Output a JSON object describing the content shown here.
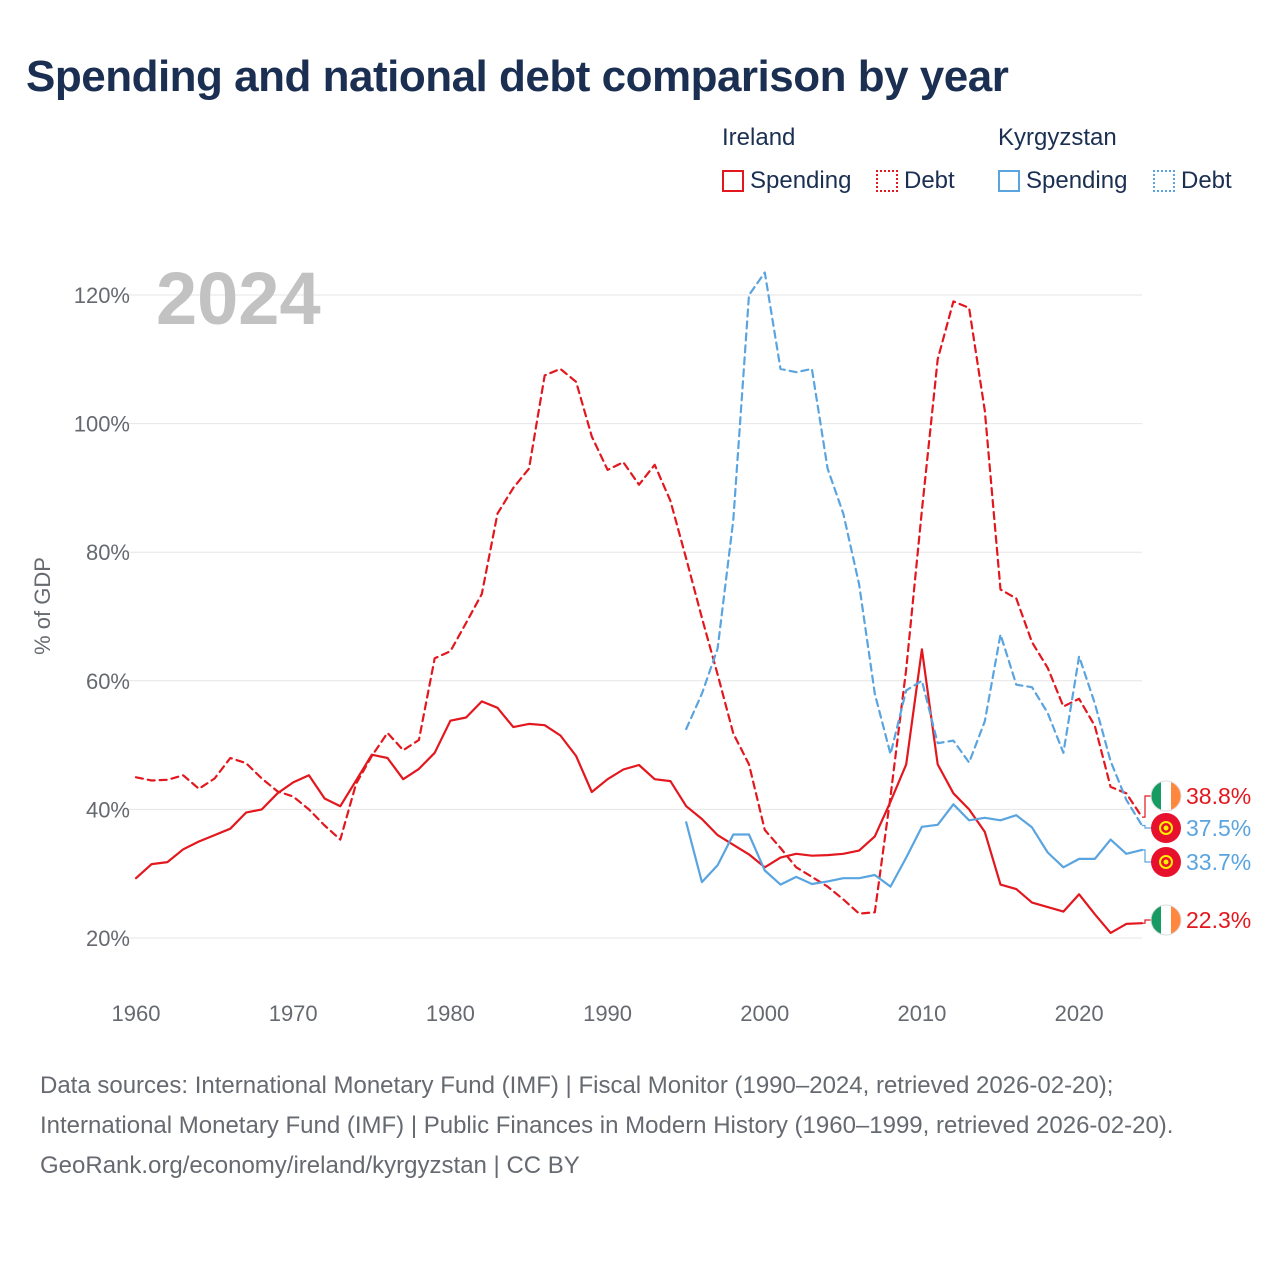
{
  "title": "Spending and national debt comparison by year",
  "legend": {
    "groups": [
      {
        "name": "Ireland",
        "items": [
          {
            "label": "Spending",
            "style": "solid",
            "color": "#e3171e"
          },
          {
            "label": "Debt",
            "style": "dotted",
            "color": "#e3171e"
          }
        ]
      },
      {
        "name": "Kyrgyzstan",
        "items": [
          {
            "label": "Spending",
            "style": "solid",
            "color": "#5aa4e0"
          },
          {
            "label": "Debt",
            "style": "dotted",
            "color": "#5aa4e0"
          }
        ]
      }
    ]
  },
  "chart_data": {
    "type": "line",
    "year_label": "2024",
    "ylabel": "% of GDP",
    "xlim": [
      1960,
      2024
    ],
    "ylim": [
      14,
      124
    ],
    "yticks": [
      20,
      40,
      60,
      80,
      100,
      120
    ],
    "ytick_labels": [
      "20%",
      "40%",
      "60%",
      "80%",
      "100%",
      "120%"
    ],
    "xticks": [
      1960,
      1970,
      1980,
      1990,
      2000,
      2010,
      2020
    ],
    "xtick_labels": [
      "1960",
      "1970",
      "1980",
      "1990",
      "2000",
      "2010",
      "2020"
    ],
    "colors": {
      "ireland": "#e3171e",
      "kyrgyzstan": "#5aa4e0"
    },
    "series": [
      {
        "name": "Ireland Debt",
        "country": "ireland",
        "style": "dashed",
        "color": "#e3171e",
        "x": [
          1960,
          1961,
          1962,
          1963,
          1964,
          1965,
          1966,
          1967,
          1968,
          1969,
          1970,
          1971,
          1972,
          1973,
          1974,
          1975,
          1976,
          1977,
          1978,
          1979,
          1980,
          1981,
          1982,
          1983,
          1984,
          1985,
          1986,
          1987,
          1988,
          1989,
          1990,
          1991,
          1992,
          1993,
          1994,
          1995,
          1996,
          1997,
          1998,
          1999,
          2000,
          2001,
          2002,
          2003,
          2004,
          2005,
          2006,
          2007,
          2008,
          2009,
          2010,
          2011,
          2012,
          2013,
          2014,
          2015,
          2016,
          2017,
          2018,
          2019,
          2020,
          2021,
          2022,
          2023,
          2024
        ],
        "values": [
          45,
          44.5,
          44.6,
          45.3,
          43.2,
          44.8,
          48,
          47.2,
          44.8,
          42.8,
          42,
          40,
          37.5,
          35.3,
          44,
          48.3,
          51.9,
          49.2,
          50.8,
          63.5,
          64.6,
          69,
          73.5,
          86,
          90,
          93,
          107.5,
          108.5,
          106.5,
          98,
          92.8,
          94,
          90.5,
          93.6,
          88,
          79,
          69.8,
          61,
          51.8,
          47,
          36.8,
          34,
          31,
          29.5,
          28,
          26,
          23.8,
          24,
          42,
          61.8,
          86.5,
          110,
          119,
          118,
          102,
          74.2,
          72.8,
          66,
          62,
          56,
          57.2,
          53,
          43.5,
          42.5,
          38.8
        ],
        "end_label": "38.8%"
      },
      {
        "name": "Ireland Spending",
        "country": "ireland",
        "style": "solid",
        "color": "#e3171e",
        "x": [
          1960,
          1961,
          1962,
          1963,
          1964,
          1965,
          1966,
          1967,
          1968,
          1969,
          1970,
          1971,
          1972,
          1973,
          1974,
          1975,
          1976,
          1977,
          1978,
          1979,
          1980,
          1981,
          1982,
          1983,
          1984,
          1985,
          1986,
          1987,
          1988,
          1989,
          1990,
          1991,
          1992,
          1993,
          1994,
          1995,
          1996,
          1997,
          1998,
          1999,
          2000,
          2001,
          2002,
          2003,
          2004,
          2005,
          2006,
          2007,
          2008,
          2009,
          2010,
          2011,
          2012,
          2013,
          2014,
          2015,
          2016,
          2017,
          2018,
          2019,
          2020,
          2021,
          2022,
          2023,
          2024
        ],
        "values": [
          29.3,
          31.5,
          31.8,
          33.8,
          35,
          36,
          37,
          39.5,
          40,
          42.5,
          44.2,
          45.3,
          41.7,
          40.5,
          44.5,
          48.5,
          48,
          44.7,
          46.3,
          48.8,
          53.8,
          54.3,
          56.8,
          55.8,
          52.8,
          53.3,
          53.1,
          51.5,
          48.3,
          42.7,
          44.7,
          46.2,
          46.9,
          44.7,
          44.4,
          40.5,
          38.5,
          36,
          34.5,
          33,
          31,
          32.5,
          33.1,
          32.8,
          32.9,
          33.1,
          33.6,
          35.8,
          41.2,
          47,
          64.9,
          47,
          42.5,
          40,
          36.5,
          28.3,
          27.6,
          25.5,
          24.8,
          24.1,
          26.8,
          23.7,
          20.8,
          22.2,
          22.3
        ],
        "end_label": "22.3%"
      },
      {
        "name": "Kyrgyzstan Debt",
        "country": "kyrgyzstan",
        "style": "dashed",
        "color": "#5aa4e0",
        "x": [
          1995,
          1996,
          1997,
          1998,
          1999,
          2000,
          2001,
          2002,
          2003,
          2004,
          2005,
          2006,
          2007,
          2008,
          2009,
          2010,
          2011,
          2012,
          2013,
          2014,
          2015,
          2016,
          2017,
          2018,
          2019,
          2020,
          2021,
          2022,
          2023,
          2024
        ],
        "values": [
          52.5,
          58,
          65,
          85,
          120,
          123.5,
          108.5,
          108,
          108.5,
          93,
          86,
          75,
          58,
          48.6,
          58.5,
          60,
          50.3,
          50.7,
          47.3,
          53.7,
          67.2,
          59.4,
          59,
          55,
          48.8,
          63.8,
          56.5,
          47.5,
          41.5,
          37.5
        ],
        "end_label": "37.5%"
      },
      {
        "name": "Kyrgyzstan Spending",
        "country": "kyrgyzstan",
        "style": "solid",
        "color": "#5aa4e0",
        "x": [
          1995,
          1996,
          1997,
          1998,
          1999,
          2000,
          2001,
          2002,
          2003,
          2004,
          2005,
          2006,
          2007,
          2008,
          2009,
          2010,
          2011,
          2012,
          2013,
          2014,
          2015,
          2016,
          2017,
          2018,
          2019,
          2020,
          2021,
          2022,
          2023,
          2024
        ],
        "values": [
          38,
          28.7,
          31.3,
          36.1,
          36.1,
          30.5,
          28.3,
          29.5,
          28.4,
          28.8,
          29.3,
          29.3,
          29.8,
          28,
          32.5,
          37.3,
          37.6,
          40.8,
          38.3,
          38.7,
          38.3,
          39.1,
          37.2,
          33.3,
          31,
          32.3,
          32.3,
          35.3,
          33.1,
          33.7
        ],
        "end_label": "33.7%"
      }
    ]
  },
  "footer": {
    "sources": "Data sources: International Monetary Fund (IMF) | Fiscal Monitor (1990–2024, retrieved 2026-02-20); International Monetary Fund (IMF) | Public Finances in Modern History (1960–1999, retrieved 2026-02-20).",
    "credit": "GeoRank.org/economy/ireland/kyrgyzstan | CC BY"
  }
}
